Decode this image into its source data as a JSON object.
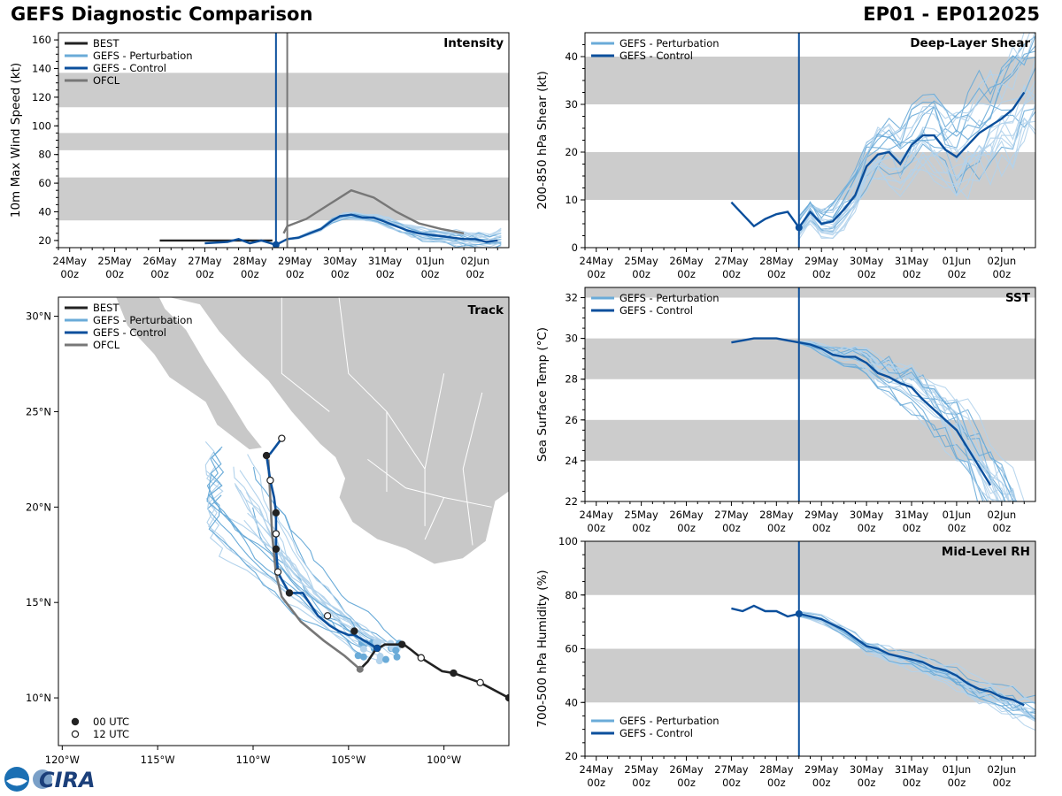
{
  "header": {
    "title_left": "GEFS Diagnostic Comparison",
    "title_right": "EP01 - EP012025"
  },
  "logo": {
    "label": "CIRA"
  },
  "colors": {
    "best": "#222222",
    "pert": "#6aabd8",
    "pert_light": "#b3d3ec",
    "ctrl": "#0b4f9c",
    "ofcl": "#777777",
    "band": "#cccccc",
    "land": "#c8c8c8"
  },
  "time_axis": {
    "labels": [
      "24May\n00z",
      "25May\n00z",
      "26May\n00z",
      "27May\n00z",
      "28May\n00z",
      "29May\n00z",
      "30May\n00z",
      "31May\n00z",
      "01Jun\n00z",
      "02Jun\n00z"
    ],
    "range": [
      -0.25,
      9.75
    ]
  },
  "chart_data": [
    {
      "id": "intensity",
      "type": "line",
      "panel_label": "Intensity",
      "ylabel": "10m Max Wind Speed (kt)",
      "ylim": [
        15,
        165
      ],
      "yticks": [
        20,
        40,
        60,
        80,
        100,
        120,
        140,
        160
      ],
      "bands": [
        [
          34,
          64
        ],
        [
          83,
          95
        ],
        [
          113,
          137
        ]
      ],
      "init_time": 4.58,
      "ofcl_vline": 4.83,
      "legend": [
        "BEST",
        "GEFS - Perturbation",
        "GEFS - Control",
        "OFCL"
      ],
      "series": [
        {
          "name": "BEST",
          "role": "best",
          "x": [
            2,
            2.5,
            3,
            3.5,
            4,
            4.25,
            4.5
          ],
          "y": [
            20,
            20,
            20,
            20,
            20,
            20,
            20
          ]
        },
        {
          "name": "GEFS - Control",
          "role": "ctrl",
          "x": [
            3,
            3.5,
            3.75,
            4,
            4.25,
            4.58,
            4.83,
            5.08,
            5.33,
            5.58,
            5.83,
            6,
            6.25,
            6.5,
            6.75,
            7,
            7.25,
            7.5,
            7.75,
            8,
            8.25,
            8.5,
            8.75,
            9,
            9.25,
            9.5
          ],
          "y": [
            18,
            19,
            21,
            18,
            20,
            17,
            21,
            22,
            25,
            28,
            34,
            37,
            38,
            36,
            36,
            33,
            30,
            27,
            25,
            24,
            23,
            22,
            21,
            21,
            19,
            20
          ]
        },
        {
          "name": "OFCL",
          "role": "ofcl",
          "x": [
            4.75,
            4.83,
            5.25,
            5.75,
            6.25,
            6.75,
            7.25,
            7.75,
            8.25,
            8.75
          ],
          "y": [
            25,
            30,
            35,
            45,
            55,
            50,
            40,
            32,
            28,
            25
          ]
        }
      ],
      "ensemble": {
        "count": 20,
        "start": 4.58,
        "end": 9.75,
        "base": "ctrl",
        "spread": [
          0,
          7
        ]
      },
      "markers": [
        {
          "x": 4.58,
          "y": 17,
          "role": "ctrl"
        }
      ]
    },
    {
      "id": "shear",
      "type": "line",
      "panel_label": "Deep-Layer Shear",
      "ylabel": "200-850 hPa Shear (kt)",
      "ylim": [
        0,
        45
      ],
      "yticks": [
        0,
        10,
        20,
        30,
        40
      ],
      "bands": [
        [
          10,
          20
        ],
        [
          30,
          40
        ]
      ],
      "init_time": 4.5,
      "legend": [
        "GEFS - Perturbation",
        "GEFS - Control"
      ],
      "series": [
        {
          "name": "GEFS - Control",
          "role": "ctrl",
          "x": [
            3,
            3.25,
            3.5,
            3.75,
            4,
            4.25,
            4.5,
            4.75,
            5,
            5.25,
            5.5,
            5.75,
            6,
            6.25,
            6.5,
            6.75,
            7,
            7.25,
            7.5,
            7.75,
            8,
            8.25,
            8.5,
            8.75,
            9,
            9.25,
            9.5
          ],
          "y": [
            9.5,
            7,
            4.5,
            6,
            7,
            7.5,
            4.2,
            7.5,
            5,
            5.5,
            8,
            11,
            17,
            19.5,
            20,
            17.5,
            21.5,
            23.5,
            23.5,
            20.5,
            19,
            21.5,
            24,
            25.5,
            27,
            29,
            32.5
          ]
        }
      ],
      "ensemble": {
        "count": 22,
        "start": 4.5,
        "end": 9.75,
        "base": "ctrl",
        "spread": [
          2,
          12
        ]
      },
      "markers": [
        {
          "x": 4.5,
          "y": 4.2,
          "role": "ctrl"
        }
      ]
    },
    {
      "id": "sst",
      "type": "line",
      "panel_label": "SST",
      "ylabel": "Sea Surface Temp (°C)",
      "ylim": [
        22,
        32.5
      ],
      "yticks": [
        22,
        24,
        26,
        28,
        30,
        32
      ],
      "bands": [
        [
          24,
          26
        ],
        [
          28,
          30
        ],
        [
          32,
          32.5
        ]
      ],
      "init_time": 4.5,
      "legend": [
        "GEFS - Perturbation",
        "GEFS - Control"
      ],
      "series": [
        {
          "name": "GEFS - Control",
          "role": "ctrl",
          "x": [
            3,
            3.25,
            3.5,
            3.75,
            4,
            4.25,
            4.5,
            4.75,
            5,
            5.25,
            5.5,
            5.75,
            6,
            6.25,
            6.5,
            6.75,
            7,
            7.25,
            7.5,
            7.75,
            8,
            8.25,
            8.5,
            8.75
          ],
          "y": [
            29.8,
            29.9,
            30,
            30,
            30,
            29.9,
            29.8,
            29.7,
            29.5,
            29.2,
            29.1,
            29.1,
            28.8,
            28.3,
            28.1,
            27.8,
            27.6,
            27.0,
            26.5,
            26.0,
            25.5,
            24.6,
            23.7,
            22.8
          ]
        }
      ],
      "ensemble": {
        "count": 22,
        "start": 4.5,
        "end": 9.75,
        "base": "ctrl",
        "spread": [
          0.05,
          2.5
        ]
      },
      "markers": []
    },
    {
      "id": "rh",
      "type": "line",
      "panel_label": "Mid-Level RH",
      "ylabel": "700-500 hPa Humidity (%)",
      "ylim": [
        20,
        100
      ],
      "yticks": [
        20,
        40,
        60,
        80,
        100
      ],
      "bands": [
        [
          40,
          60
        ],
        [
          80,
          100
        ]
      ],
      "init_time": 4.5,
      "legend": [
        "GEFS - Perturbation",
        "GEFS - Control"
      ],
      "series": [
        {
          "name": "GEFS - Control",
          "role": "ctrl",
          "x": [
            3,
            3.25,
            3.5,
            3.75,
            4,
            4.25,
            4.5,
            4.75,
            5,
            5.25,
            5.5,
            5.75,
            6,
            6.25,
            6.5,
            6.75,
            7,
            7.25,
            7.5,
            7.75,
            8,
            8.25,
            8.5,
            8.75,
            9,
            9.25,
            9.5
          ],
          "y": [
            75,
            74,
            76,
            74,
            74,
            72,
            73,
            72,
            71,
            69,
            67,
            64,
            61,
            60,
            58,
            57,
            56,
            55,
            53,
            52,
            50,
            47,
            45,
            44,
            42,
            41,
            39
          ]
        }
      ],
      "ensemble": {
        "count": 20,
        "start": 4.5,
        "end": 9.75,
        "base": "ctrl",
        "spread": [
          1,
          6
        ]
      },
      "markers": [
        {
          "x": 4.5,
          "y": 73,
          "role": "ctrl"
        }
      ]
    },
    {
      "id": "track",
      "type": "scatter",
      "panel_label": "Track",
      "xlim": [
        -120.2,
        -96.6
      ],
      "ylim": [
        7.5,
        31
      ],
      "xticks": [
        -120,
        -115,
        -110,
        -105,
        -100
      ],
      "xticklabels": [
        "120°W",
        "115°W",
        "110°W",
        "105°W",
        "100°W"
      ],
      "yticks": [
        10,
        15,
        20,
        25,
        30
      ],
      "yticklabels": [
        "10°N",
        "15°N",
        "20°N",
        "25°N",
        "30°N"
      ],
      "legend": [
        "BEST",
        "GEFS - Perturbation",
        "GEFS - Control",
        "OFCL"
      ],
      "time_legend": [
        "00 UTC",
        "12 UTC"
      ],
      "best": {
        "lon": [
          -96.6,
          -98.1,
          -99.5,
          -100.1,
          -101.2,
          -101.7,
          -102.1,
          -102.6,
          -103.1,
          -103.6,
          -104.0,
          -104.4
        ],
        "lat": [
          10.0,
          10.8,
          11.3,
          11.4,
          12.1,
          12.5,
          12.8,
          12.8,
          12.8,
          12.5,
          11.9,
          11.5
        ]
      },
      "best_points": [
        {
          "lon": -96.6,
          "lat": 10.0,
          "utc": "00"
        },
        {
          "lon": -98.1,
          "lat": 10.8,
          "utc": "12"
        },
        {
          "lon": -99.5,
          "lat": 11.3,
          "utc": "00"
        },
        {
          "lon": -101.2,
          "lat": 12.1,
          "utc": "12"
        },
        {
          "lon": -102.2,
          "lat": 12.8,
          "utc": "00"
        }
      ],
      "ctrl": {
        "lon": [
          -103.5,
          -104.0,
          -104.7,
          -105.0,
          -105.5,
          -106.0,
          -106.6,
          -107.4,
          -108.1,
          -108.5,
          -108.7,
          -108.8,
          -108.8,
          -108.8,
          -108.9,
          -109.1,
          -109.3,
          -109.1,
          -108.8,
          -108.5
        ],
        "lat": [
          12.6,
          12.9,
          13.3,
          13.3,
          13.5,
          13.8,
          14.3,
          15.5,
          15.5,
          16.2,
          16.6,
          17.8,
          18.6,
          19.7,
          20.5,
          21.4,
          22.7,
          22.8,
          23.2,
          23.6
        ]
      },
      "ctrl_points": [
        {
          "lon": -103.5,
          "lat": 12.6,
          "utc": "00"
        },
        {
          "lon": -104.7,
          "lat": 13.5,
          "utc": "00"
        },
        {
          "lon": -106.1,
          "lat": 14.3,
          "utc": "12"
        },
        {
          "lon": -108.1,
          "lat": 15.5,
          "utc": "00"
        },
        {
          "lon": -108.7,
          "lat": 16.6,
          "utc": "12"
        },
        {
          "lon": -108.8,
          "lat": 17.8,
          "utc": "00"
        },
        {
          "lon": -108.8,
          "lat": 18.6,
          "utc": "12"
        },
        {
          "lon": -108.8,
          "lat": 19.7,
          "utc": "00"
        },
        {
          "lon": -109.1,
          "lat": 21.4,
          "utc": "12"
        },
        {
          "lon": -109.3,
          "lat": 22.7,
          "utc": "00"
        },
        {
          "lon": -108.5,
          "lat": 23.6,
          "utc": "12"
        }
      ],
      "ofcl": {
        "lon": [
          -104.4,
          -105.2,
          -106.3,
          -107.5,
          -108.5,
          -108.8,
          -109.0,
          -109.2
        ],
        "lat": [
          11.5,
          12.2,
          13.0,
          14.0,
          15.3,
          16.5,
          18.5,
          22.5
        ]
      },
      "pert_count": 22
    }
  ]
}
